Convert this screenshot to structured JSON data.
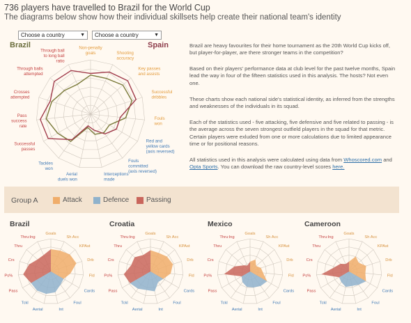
{
  "header": {
    "title": "736 players have travelled to Brazil for the World Cup",
    "subtitle": "The diagrams below show how their individual skillsets help create their national team's identity"
  },
  "selectors": {
    "left": "Choose a country",
    "right": "Choose a country",
    "arrow": "▼"
  },
  "comparison": {
    "team_left": "Brazil",
    "team_right": "Spain",
    "labels": [
      {
        "text": "Non-penalty goals",
        "lines": [
          "Non-penalty",
          "goals"
        ],
        "color": "#e39a3a"
      },
      {
        "text": "Shooting accuracy",
        "lines": [
          "Shooting",
          "accuracy"
        ],
        "color": "#e39a3a"
      },
      {
        "text": "Key passes and assists",
        "lines": [
          "Key passes",
          "and assists"
        ],
        "color": "#e39a3a"
      },
      {
        "text": "Successful dribbles",
        "lines": [
          "Successful",
          "dribbles"
        ],
        "color": "#e39a3a"
      },
      {
        "text": "Fouls won",
        "lines": [
          "Fouls",
          "won"
        ],
        "color": "#e39a3a"
      },
      {
        "text": "Red and yellow cards (axis reversed)",
        "lines": [
          "Red and",
          "yellow cards",
          "(axis reversed)"
        ],
        "color": "#3d78b5"
      },
      {
        "text": "Fouls committed (axis reversed)",
        "lines": [
          "Fouls",
          "committed",
          "(axis reversed)"
        ],
        "color": "#3d78b5"
      },
      {
        "text": "Interceptions made",
        "lines": [
          "Interceptions",
          "made"
        ],
        "color": "#3d78b5"
      },
      {
        "text": "Aerial duels won",
        "lines": [
          "Aerial",
          "duels won"
        ],
        "color": "#3d78b5"
      },
      {
        "text": "Tackles won",
        "lines": [
          "Tackles",
          "won"
        ],
        "color": "#3d78b5"
      },
      {
        "text": "Successful passes",
        "lines": [
          "Successful",
          "passes"
        ],
        "color": "#c4403f"
      },
      {
        "text": "Pass success rate",
        "lines": [
          "Pass",
          "success",
          "rate"
        ],
        "color": "#c4403f"
      },
      {
        "text": "Crosses attempted",
        "lines": [
          "Crosses",
          "attempted"
        ],
        "color": "#c4403f"
      },
      {
        "text": "Through balls attempted",
        "lines": [
          "Through balls",
          "attempted"
        ],
        "color": "#c4403f"
      },
      {
        "text": "Through ball to long ball ratio",
        "lines": [
          "Through ball",
          "to long ball",
          "ratio"
        ],
        "color": "#c4403f"
      }
    ]
  },
  "paragraphs": [
    "Brazil are heavy favourites for their home tournament as the 20th World Cup kicks off, but player-for-player, are there stronger teams in the competition?",
    "Based on their players' performance data at club level for the past twelve months, Spain lead the way in four of the fifteen statistics used in this analysis. The hosts? Not even one.",
    "These charts show each national side's statistical identity, as inferred from the strengths and weaknesses of the individuals in its squad.",
    "Each of the statistics used - five attacking, five defensive and five related to passing - is the average across the seven strongest outfield players in the squad for that metric. Certain players were exluded from one or more calculations due to limited appearance time or for positional reasons."
  ],
  "sources": {
    "prefix": "All statistics used in this analysis were calculated using data from",
    "link1": "Whoscored.com",
    "and": "and",
    "link2": "Opta Sports",
    "middle": ". You can download the raw country-level scores",
    "link3": "here."
  },
  "legend": {
    "group": "Group A",
    "items": [
      {
        "label": "Attack",
        "color": "#f0ad6a"
      },
      {
        "label": "Defence",
        "color": "#8fb2cc"
      },
      {
        "label": "Passing",
        "color": "#c9665c"
      }
    ]
  },
  "small_labels": [
    "Goals",
    "Sh Acc",
    "KPAst",
    "Drb",
    "Fld",
    "Cards",
    "Foul",
    "Int",
    "Aerial",
    "Tckl",
    "Pass",
    "Ps%",
    "Crs",
    "Thru",
    "Thru:lng"
  ],
  "colors": {
    "attack": "#f0ad6a",
    "defence": "#8fb2cc",
    "passing": "#c9665c",
    "brazil_line": "#7a7a3a",
    "spain_line": "#a03a4a"
  },
  "chart_data": [
    {
      "type": "radar",
      "title": "Brazil vs Spain",
      "axes": [
        "Non-penalty goals",
        "Shooting accuracy",
        "Key passes and assists",
        "Successful dribbles",
        "Fouls won",
        "Red and yellow cards (axis reversed)",
        "Fouls committed (axis reversed)",
        "Interceptions made",
        "Aerial duels won",
        "Tackles won",
        "Successful passes",
        "Pass success rate",
        "Crosses attempted",
        "Through balls attempted",
        "Through ball to long ball ratio"
      ],
      "series": [
        {
          "name": "Brazil",
          "values": [
            0.72,
            0.72,
            0.8,
            0.8,
            0.65,
            0.4,
            0.42,
            0.38,
            0.25,
            0.62,
            0.7,
            0.82,
            0.75,
            0.65,
            0.6
          ]
        },
        {
          "name": "Spain",
          "values": [
            0.75,
            0.85,
            0.92,
            0.88,
            0.55,
            0.55,
            0.45,
            0.3,
            0.22,
            0.58,
            0.9,
            0.93,
            0.78,
            0.9,
            0.88
          ]
        }
      ],
      "ylim": [
        0,
        1
      ]
    },
    {
      "type": "radar",
      "title": "Brazil",
      "axes": [
        "Goals",
        "Sh Acc",
        "KPAst",
        "Drb",
        "Fld",
        "Cards",
        "Foul",
        "Int",
        "Aerial",
        "Tckl",
        "Pass",
        "Ps%",
        "Crs",
        "Thru",
        "Thru:lng"
      ],
      "values": [
        0.68,
        0.7,
        0.78,
        0.82,
        0.6,
        0.45,
        0.5,
        0.65,
        0.7,
        0.72,
        0.7,
        0.85,
        0.7,
        0.55,
        0.55
      ]
    },
    {
      "type": "radar",
      "title": "Croatia",
      "axes": [
        "Goals",
        "Sh Acc",
        "KPAst",
        "Drb",
        "Fld",
        "Cards",
        "Foul",
        "Int",
        "Aerial",
        "Tckl",
        "Pass",
        "Ps%",
        "Crs",
        "Thru",
        "Thru:lng"
      ],
      "values": [
        0.65,
        0.62,
        0.68,
        0.72,
        0.62,
        0.45,
        0.4,
        0.62,
        0.58,
        0.65,
        0.72,
        0.82,
        0.62,
        0.65,
        0.55
      ]
    },
    {
      "type": "radar",
      "title": "Mexico",
      "axes": [
        "Goals",
        "Sh Acc",
        "KPAst",
        "Drb",
        "Fld",
        "Cards",
        "Foul",
        "Int",
        "Aerial",
        "Tckl",
        "Pass",
        "Ps%",
        "Crs",
        "Thru",
        "Thru:lng"
      ],
      "values": [
        0.3,
        0.4,
        0.25,
        0.35,
        0.4,
        0.6,
        0.55,
        0.5,
        0.48,
        0.4,
        0.3,
        0.8,
        0.5,
        0.28,
        0.2
      ]
    },
    {
      "type": "radar",
      "title": "Cameroon",
      "axes": [
        "Goals",
        "Sh Acc",
        "KPAst",
        "Drb",
        "Fld",
        "Cards",
        "Foul",
        "Int",
        "Aerial",
        "Tckl",
        "Pass",
        "Ps%",
        "Crs",
        "Thru",
        "Thru:lng"
      ],
      "values": [
        0.3,
        0.5,
        0.4,
        0.55,
        0.5,
        0.6,
        0.5,
        0.45,
        0.48,
        0.4,
        0.35,
        0.85,
        0.45,
        0.35,
        0.25
      ]
    }
  ]
}
